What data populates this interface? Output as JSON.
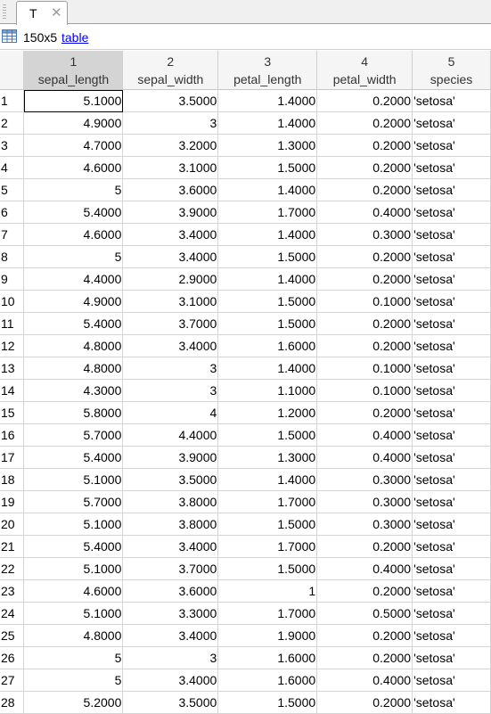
{
  "tab": {
    "label": "T",
    "close": "✕"
  },
  "info": {
    "size": "150x5",
    "type_link": "table"
  },
  "columns": [
    {
      "index": "1",
      "name": "sepal_length"
    },
    {
      "index": "2",
      "name": "sepal_width"
    },
    {
      "index": "3",
      "name": "petal_length"
    },
    {
      "index": "4",
      "name": "petal_width"
    },
    {
      "index": "5",
      "name": "species"
    }
  ],
  "rows": [
    [
      "1",
      "5.1000",
      "3.5000",
      "1.4000",
      "0.2000",
      "'setosa'"
    ],
    [
      "2",
      "4.9000",
      "3",
      "1.4000",
      "0.2000",
      "'setosa'"
    ],
    [
      "3",
      "4.7000",
      "3.2000",
      "1.3000",
      "0.2000",
      "'setosa'"
    ],
    [
      "4",
      "4.6000",
      "3.1000",
      "1.5000",
      "0.2000",
      "'setosa'"
    ],
    [
      "5",
      "5",
      "3.6000",
      "1.4000",
      "0.2000",
      "'setosa'"
    ],
    [
      "6",
      "5.4000",
      "3.9000",
      "1.7000",
      "0.4000",
      "'setosa'"
    ],
    [
      "7",
      "4.6000",
      "3.4000",
      "1.4000",
      "0.3000",
      "'setosa'"
    ],
    [
      "8",
      "5",
      "3.4000",
      "1.5000",
      "0.2000",
      "'setosa'"
    ],
    [
      "9",
      "4.4000",
      "2.9000",
      "1.4000",
      "0.2000",
      "'setosa'"
    ],
    [
      "10",
      "4.9000",
      "3.1000",
      "1.5000",
      "0.1000",
      "'setosa'"
    ],
    [
      "11",
      "5.4000",
      "3.7000",
      "1.5000",
      "0.2000",
      "'setosa'"
    ],
    [
      "12",
      "4.8000",
      "3.4000",
      "1.6000",
      "0.2000",
      "'setosa'"
    ],
    [
      "13",
      "4.8000",
      "3",
      "1.4000",
      "0.1000",
      "'setosa'"
    ],
    [
      "14",
      "4.3000",
      "3",
      "1.1000",
      "0.1000",
      "'setosa'"
    ],
    [
      "15",
      "5.8000",
      "4",
      "1.2000",
      "0.2000",
      "'setosa'"
    ],
    [
      "16",
      "5.7000",
      "4.4000",
      "1.5000",
      "0.4000",
      "'setosa'"
    ],
    [
      "17",
      "5.4000",
      "3.9000",
      "1.3000",
      "0.4000",
      "'setosa'"
    ],
    [
      "18",
      "5.1000",
      "3.5000",
      "1.4000",
      "0.3000",
      "'setosa'"
    ],
    [
      "19",
      "5.7000",
      "3.8000",
      "1.7000",
      "0.3000",
      "'setosa'"
    ],
    [
      "20",
      "5.1000",
      "3.8000",
      "1.5000",
      "0.3000",
      "'setosa'"
    ],
    [
      "21",
      "5.4000",
      "3.4000",
      "1.7000",
      "0.2000",
      "'setosa'"
    ],
    [
      "22",
      "5.1000",
      "3.7000",
      "1.5000",
      "0.4000",
      "'setosa'"
    ],
    [
      "23",
      "4.6000",
      "3.6000",
      "1",
      "0.2000",
      "'setosa'"
    ],
    [
      "24",
      "5.1000",
      "3.3000",
      "1.7000",
      "0.5000",
      "'setosa'"
    ],
    [
      "25",
      "4.8000",
      "3.4000",
      "1.9000",
      "0.2000",
      "'setosa'"
    ],
    [
      "26",
      "5",
      "3",
      "1.6000",
      "0.2000",
      "'setosa'"
    ],
    [
      "27",
      "5",
      "3.4000",
      "1.6000",
      "0.4000",
      "'setosa'"
    ],
    [
      "28",
      "5.2000",
      "3.5000",
      "1.5000",
      "0.2000",
      "'setosa'"
    ]
  ],
  "selected_cell": {
    "row": 1,
    "col": 1
  }
}
